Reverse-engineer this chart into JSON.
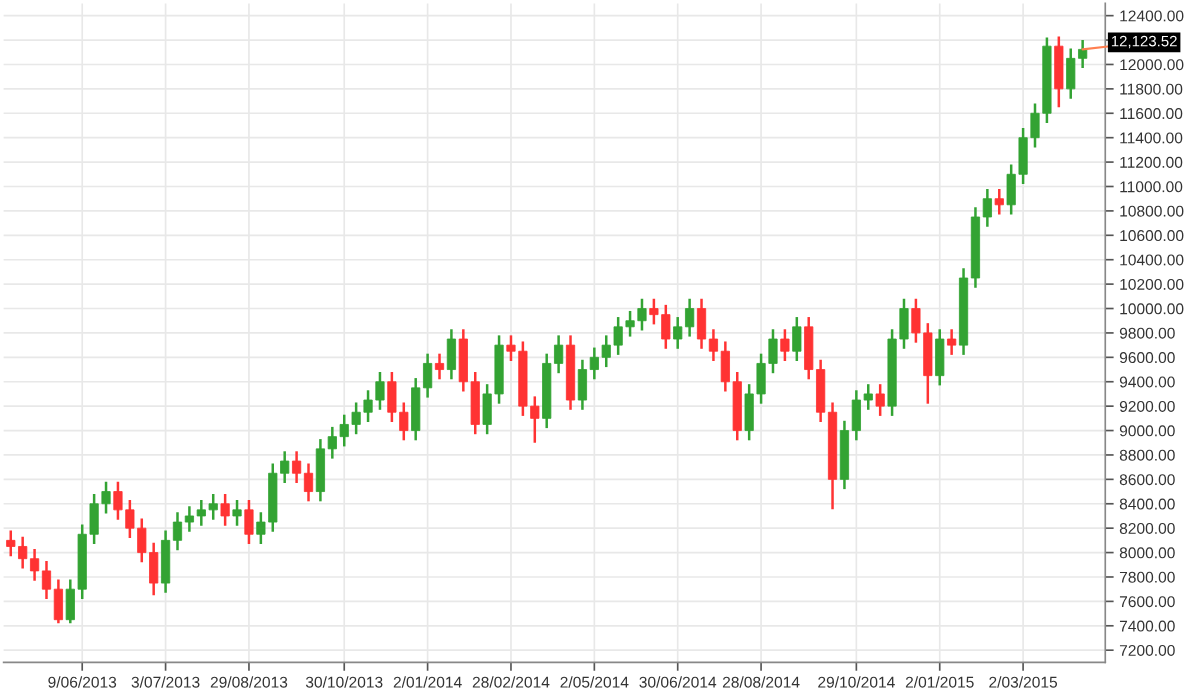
{
  "chart_data": {
    "type": "candlestick",
    "categories": [
      null,
      null,
      null,
      null,
      null,
      null,
      "9/06/2013",
      null,
      null,
      null,
      null,
      null,
      null,
      "3/07/2013",
      null,
      null,
      null,
      null,
      null,
      null,
      "29/08/2013",
      null,
      null,
      null,
      null,
      null,
      null,
      null,
      "30/10/2013",
      null,
      null,
      null,
      null,
      null,
      null,
      "2/01/2014",
      null,
      null,
      null,
      null,
      null,
      null,
      "28/02/2014",
      null,
      null,
      null,
      null,
      null,
      null,
      "2/05/2014",
      null,
      null,
      null,
      null,
      null,
      null,
      "30/06/2014",
      null,
      null,
      null,
      null,
      null,
      null,
      "28/08/2014",
      null,
      null,
      null,
      null,
      null,
      null,
      null,
      "29/10/2014",
      null,
      null,
      null,
      null,
      null,
      null,
      "2/01/2015",
      null,
      null,
      null,
      null,
      null,
      null,
      "2/03/2015",
      null,
      null,
      null,
      null,
      null
    ],
    "ohlc": [
      [
        8100,
        8180,
        7970,
        8050
      ],
      [
        8050,
        8130,
        7870,
        7950
      ],
      [
        7950,
        8030,
        7770,
        7850
      ],
      [
        7850,
        7930,
        7620,
        7700
      ],
      [
        7700,
        7780,
        7420,
        7450
      ],
      [
        7450,
        7780,
        7420,
        7700
      ],
      [
        7700,
        8230,
        7620,
        8150
      ],
      [
        8150,
        8480,
        8070,
        8400
      ],
      [
        8400,
        8580,
        8320,
        8500
      ],
      [
        8500,
        8580,
        8270,
        8350
      ],
      [
        8350,
        8430,
        8120,
        8200
      ],
      [
        8200,
        8280,
        7920,
        8000
      ],
      [
        8000,
        8080,
        7650,
        7750
      ],
      [
        7750,
        8180,
        7670,
        8100
      ],
      [
        8100,
        8330,
        8020,
        8250
      ],
      [
        8250,
        8380,
        8170,
        8300
      ],
      [
        8300,
        8430,
        8220,
        8350
      ],
      [
        8350,
        8480,
        8270,
        8400
      ],
      [
        8400,
        8480,
        8220,
        8300
      ],
      [
        8300,
        8430,
        8220,
        8350
      ],
      [
        8350,
        8430,
        8070,
        8150
      ],
      [
        8150,
        8330,
        8070,
        8250
      ],
      [
        8250,
        8730,
        8170,
        8650
      ],
      [
        8650,
        8830,
        8570,
        8750
      ],
      [
        8750,
        8830,
        8570,
        8650
      ],
      [
        8650,
        8730,
        8420,
        8500
      ],
      [
        8500,
        8930,
        8420,
        8850
      ],
      [
        8850,
        9030,
        8770,
        8950
      ],
      [
        8950,
        9130,
        8870,
        9050
      ],
      [
        9050,
        9230,
        8970,
        9150
      ],
      [
        9150,
        9330,
        9070,
        9250
      ],
      [
        9250,
        9480,
        9170,
        9400
      ],
      [
        9400,
        9480,
        9070,
        9150
      ],
      [
        9150,
        9230,
        8920,
        9000
      ],
      [
        9000,
        9430,
        8920,
        9350
      ],
      [
        9350,
        9630,
        9270,
        9550
      ],
      [
        9550,
        9630,
        9420,
        9500
      ],
      [
        9500,
        9830,
        9420,
        9750
      ],
      [
        9750,
        9830,
        9320,
        9400
      ],
      [
        9400,
        9480,
        8970,
        9050
      ],
      [
        9050,
        9380,
        8970,
        9300
      ],
      [
        9300,
        9780,
        9220,
        9700
      ],
      [
        9700,
        9780,
        9570,
        9650
      ],
      [
        9650,
        9730,
        9120,
        9200
      ],
      [
        9200,
        9280,
        8900,
        9100
      ],
      [
        9100,
        9630,
        9020,
        9550
      ],
      [
        9550,
        9780,
        9470,
        9700
      ],
      [
        9700,
        9780,
        9170,
        9250
      ],
      [
        9250,
        9580,
        9170,
        9500
      ],
      [
        9500,
        9680,
        9420,
        9600
      ],
      [
        9600,
        9780,
        9520,
        9700
      ],
      [
        9700,
        9930,
        9620,
        9850
      ],
      [
        9850,
        9980,
        9770,
        9900
      ],
      [
        9900,
        10080,
        9820,
        10000
      ],
      [
        10000,
        10080,
        9870,
        9950
      ],
      [
        9950,
        10030,
        9670,
        9750
      ],
      [
        9750,
        9930,
        9670,
        9850
      ],
      [
        9850,
        10080,
        9770,
        10000
      ],
      [
        10000,
        10080,
        9670,
        9750
      ],
      [
        9750,
        9830,
        9570,
        9650
      ],
      [
        9650,
        9730,
        9320,
        9400
      ],
      [
        9400,
        9480,
        8920,
        9000
      ],
      [
        9000,
        9380,
        8920,
        9300
      ],
      [
        9300,
        9630,
        9220,
        9550
      ],
      [
        9550,
        9830,
        9470,
        9750
      ],
      [
        9750,
        9830,
        9570,
        9650
      ],
      [
        9650,
        9930,
        9570,
        9850
      ],
      [
        9850,
        9930,
        9420,
        9500
      ],
      [
        9500,
        9580,
        9070,
        9150
      ],
      [
        9150,
        9230,
        8355,
        8600
      ],
      [
        8600,
        9080,
        8520,
        9000
      ],
      [
        9000,
        9330,
        8920,
        9250
      ],
      [
        9250,
        9380,
        9170,
        9300
      ],
      [
        9300,
        9380,
        9120,
        9200
      ],
      [
        9200,
        9830,
        9120,
        9750
      ],
      [
        9750,
        10080,
        9670,
        10000
      ],
      [
        10000,
        10080,
        9720,
        9800
      ],
      [
        9800,
        9880,
        9220,
        9450
      ],
      [
        9450,
        9830,
        9370,
        9750
      ],
      [
        9750,
        9830,
        9620,
        9700
      ],
      [
        9700,
        10330,
        9620,
        10250
      ],
      [
        10250,
        10830,
        10170,
        10750
      ],
      [
        10750,
        10980,
        10670,
        10900
      ],
      [
        10900,
        10980,
        10770,
        10850
      ],
      [
        10850,
        11180,
        10770,
        11100
      ],
      [
        11100,
        11480,
        11020,
        11400
      ],
      [
        11400,
        11680,
        11320,
        11600
      ],
      [
        11600,
        12220,
        11520,
        12150
      ],
      [
        12150,
        12230,
        11650,
        11800
      ],
      [
        11800,
        12130,
        11720,
        12050
      ],
      [
        12050,
        12200,
        11970,
        12123.52
      ]
    ],
    "colors": [
      "#ff3333",
      "#ff3333",
      "#ff3333",
      "#ff3333",
      "#ff3333",
      "#33a333",
      "#33a333",
      "#33a333",
      "#33a333",
      "#ff3333",
      "#ff3333",
      "#ff3333",
      "#ff3333",
      "#33a333",
      "#33a333",
      "#33a333",
      "#33a333",
      "#33a333",
      "#ff3333",
      "#33a333",
      "#ff3333",
      "#33a333",
      "#33a333",
      "#33a333",
      "#ff3333",
      "#ff3333",
      "#33a333",
      "#33a333",
      "#33a333",
      "#33a333",
      "#33a333",
      "#33a333",
      "#ff3333",
      "#ff3333",
      "#33a333",
      "#33a333",
      "#ff3333",
      "#33a333",
      "#ff3333",
      "#ff3333",
      "#33a333",
      "#33a333",
      "#ff3333",
      "#ff3333",
      "#ff3333",
      "#33a333",
      "#33a333",
      "#ff3333",
      "#33a333",
      "#33a333",
      "#33a333",
      "#33a333",
      "#33a333",
      "#33a333",
      "#ff3333",
      "#ff3333",
      "#33a333",
      "#33a333",
      "#ff3333",
      "#ff3333",
      "#ff3333",
      "#ff3333",
      "#33a333",
      "#33a333",
      "#33a333",
      "#ff3333",
      "#33a333",
      "#ff3333",
      "#ff3333",
      "#ff3333",
      "#33a333",
      "#33a333",
      "#33a333",
      "#ff3333",
      "#33a333",
      "#33a333",
      "#ff3333",
      "#ff3333",
      "#33a333",
      "#ff3333",
      "#33a333",
      "#33a333",
      "#33a333",
      "#ff3333",
      "#33a333",
      "#33a333",
      "#33a333",
      "#33a333",
      "#ff3333",
      "#33a333",
      "#33a333"
    ],
    "ylim": [
      7100,
      12500
    ],
    "yticks": [
      {
        "value": 7200,
        "label": "7200.00"
      },
      {
        "value": 7400,
        "label": "7400.00"
      },
      {
        "value": 7600,
        "label": "7600.00"
      },
      {
        "value": 7800,
        "label": "7800.00"
      },
      {
        "value": 8000,
        "label": "8000.00"
      },
      {
        "value": 8200,
        "label": "8200.00"
      },
      {
        "value": 8400,
        "label": "8400.00"
      },
      {
        "value": 8600,
        "label": "8600.00"
      },
      {
        "value": 8800,
        "label": "8800.00"
      },
      {
        "value": 9000,
        "label": "9000.00"
      },
      {
        "value": 9200,
        "label": "9200.00"
      },
      {
        "value": 9400,
        "label": "9400.00"
      },
      {
        "value": 9600,
        "label": "9600.00"
      },
      {
        "value": 9800,
        "label": "9800.00"
      },
      {
        "value": 10000,
        "label": "10000.00"
      },
      {
        "value": 10200,
        "label": "10200.00"
      },
      {
        "value": 10400,
        "label": "10400.00"
      },
      {
        "value": 10600,
        "label": "10600.00"
      },
      {
        "value": 10800,
        "label": "10800.00"
      },
      {
        "value": 11000,
        "label": "11000.00"
      },
      {
        "value": 11200,
        "label": "11200.00"
      },
      {
        "value": 11400,
        "label": "11400.00"
      },
      {
        "value": 11600,
        "label": "11600.00"
      },
      {
        "value": 11800,
        "label": "11800.00"
      },
      {
        "value": 12000,
        "label": "12000.00"
      },
      {
        "value": 12200,
        "label": null
      },
      {
        "value": 12400,
        "label": "12400.00"
      }
    ],
    "grid": true,
    "annotations": [
      "12,123.52"
    ]
  }
}
